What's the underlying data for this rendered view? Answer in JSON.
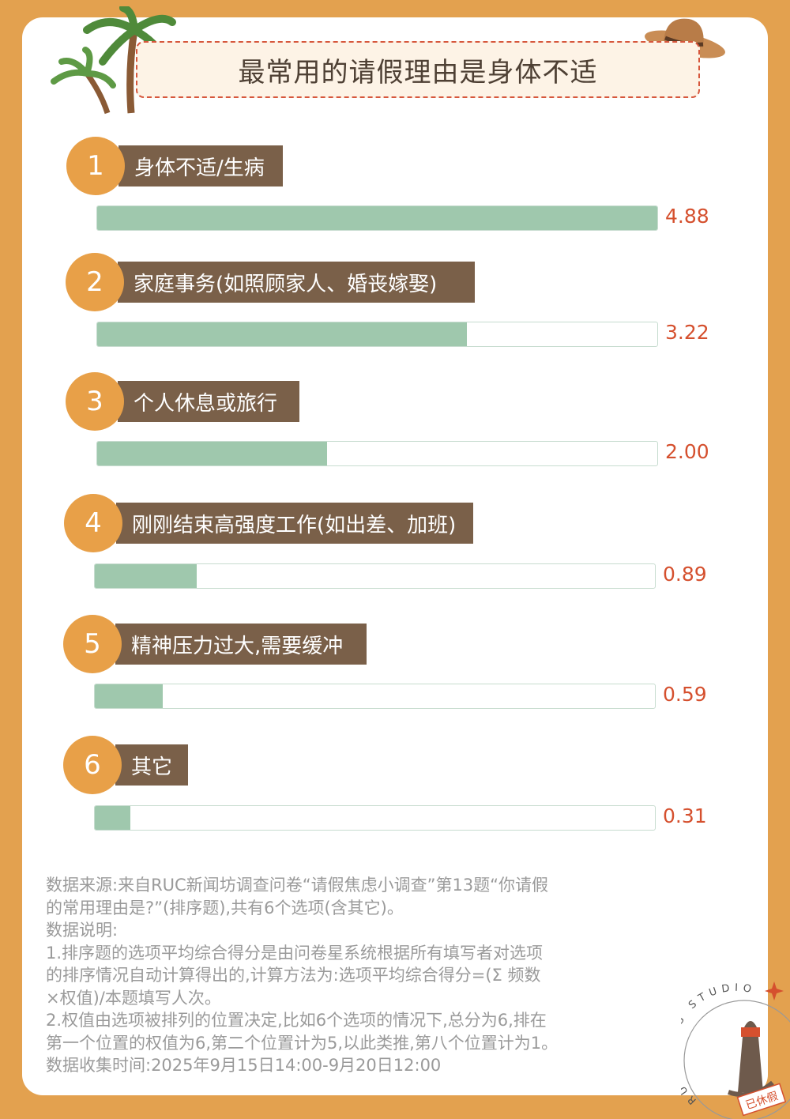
{
  "title": "最常用的请假理由是身体不适",
  "chart_data": {
    "type": "bar",
    "orientation": "horizontal",
    "title": "最常用的请假理由是身体不适",
    "categories": [
      "身体不适/生病",
      "家庭事务(如照顾家人、婚丧嫁娶)",
      "个人休息或旅行",
      "刚刚结束高强度工作(如出差、加班)",
      "精神压力过大,需要缓冲",
      "其它"
    ],
    "ranks": [
      "1",
      "2",
      "3",
      "4",
      "5",
      "6"
    ],
    "values": [
      4.88,
      3.22,
      2.0,
      0.89,
      0.59,
      0.31
    ],
    "value_labels": [
      "4.88",
      "3.22",
      "2.00",
      "0.89",
      "0.59",
      "0.31"
    ],
    "xlim": [
      0,
      4.88
    ]
  },
  "notes": [
    "数据来源:来自RUC新闻坊调查问卷“请假焦虑小调查”第13题“你请假",
    "的常用理由是?”(排序题),共有6个选项(含其它)。",
    "数据说明:",
    "1.排序题的选项平均综合得分是由问卷星系统根据所有填写者对选项",
    "的排序情况自动计算得出的,计算方法为:选项平均综合得分=(Σ 频数",
    "×权值)/本题填写人次。",
    "2.权值由选项被排列的位置决定,比如6个选项的情况下,总分为6,排在",
    "第一个位置的权值为6,第二个位置计为5,以此类推,第八个位置计为1。",
    "数据收集时间:2025年9月15日14:00-9月20日12:00"
  ],
  "logo": {
    "ring_text": "RUC NEWS STUDIO",
    "stamp": "已休假"
  },
  "colors": {
    "bg": "#E3A14F",
    "circle": "#E8A048",
    "label": "#7A6049",
    "fill": "#9FC8AD",
    "value": "#D5502E"
  }
}
